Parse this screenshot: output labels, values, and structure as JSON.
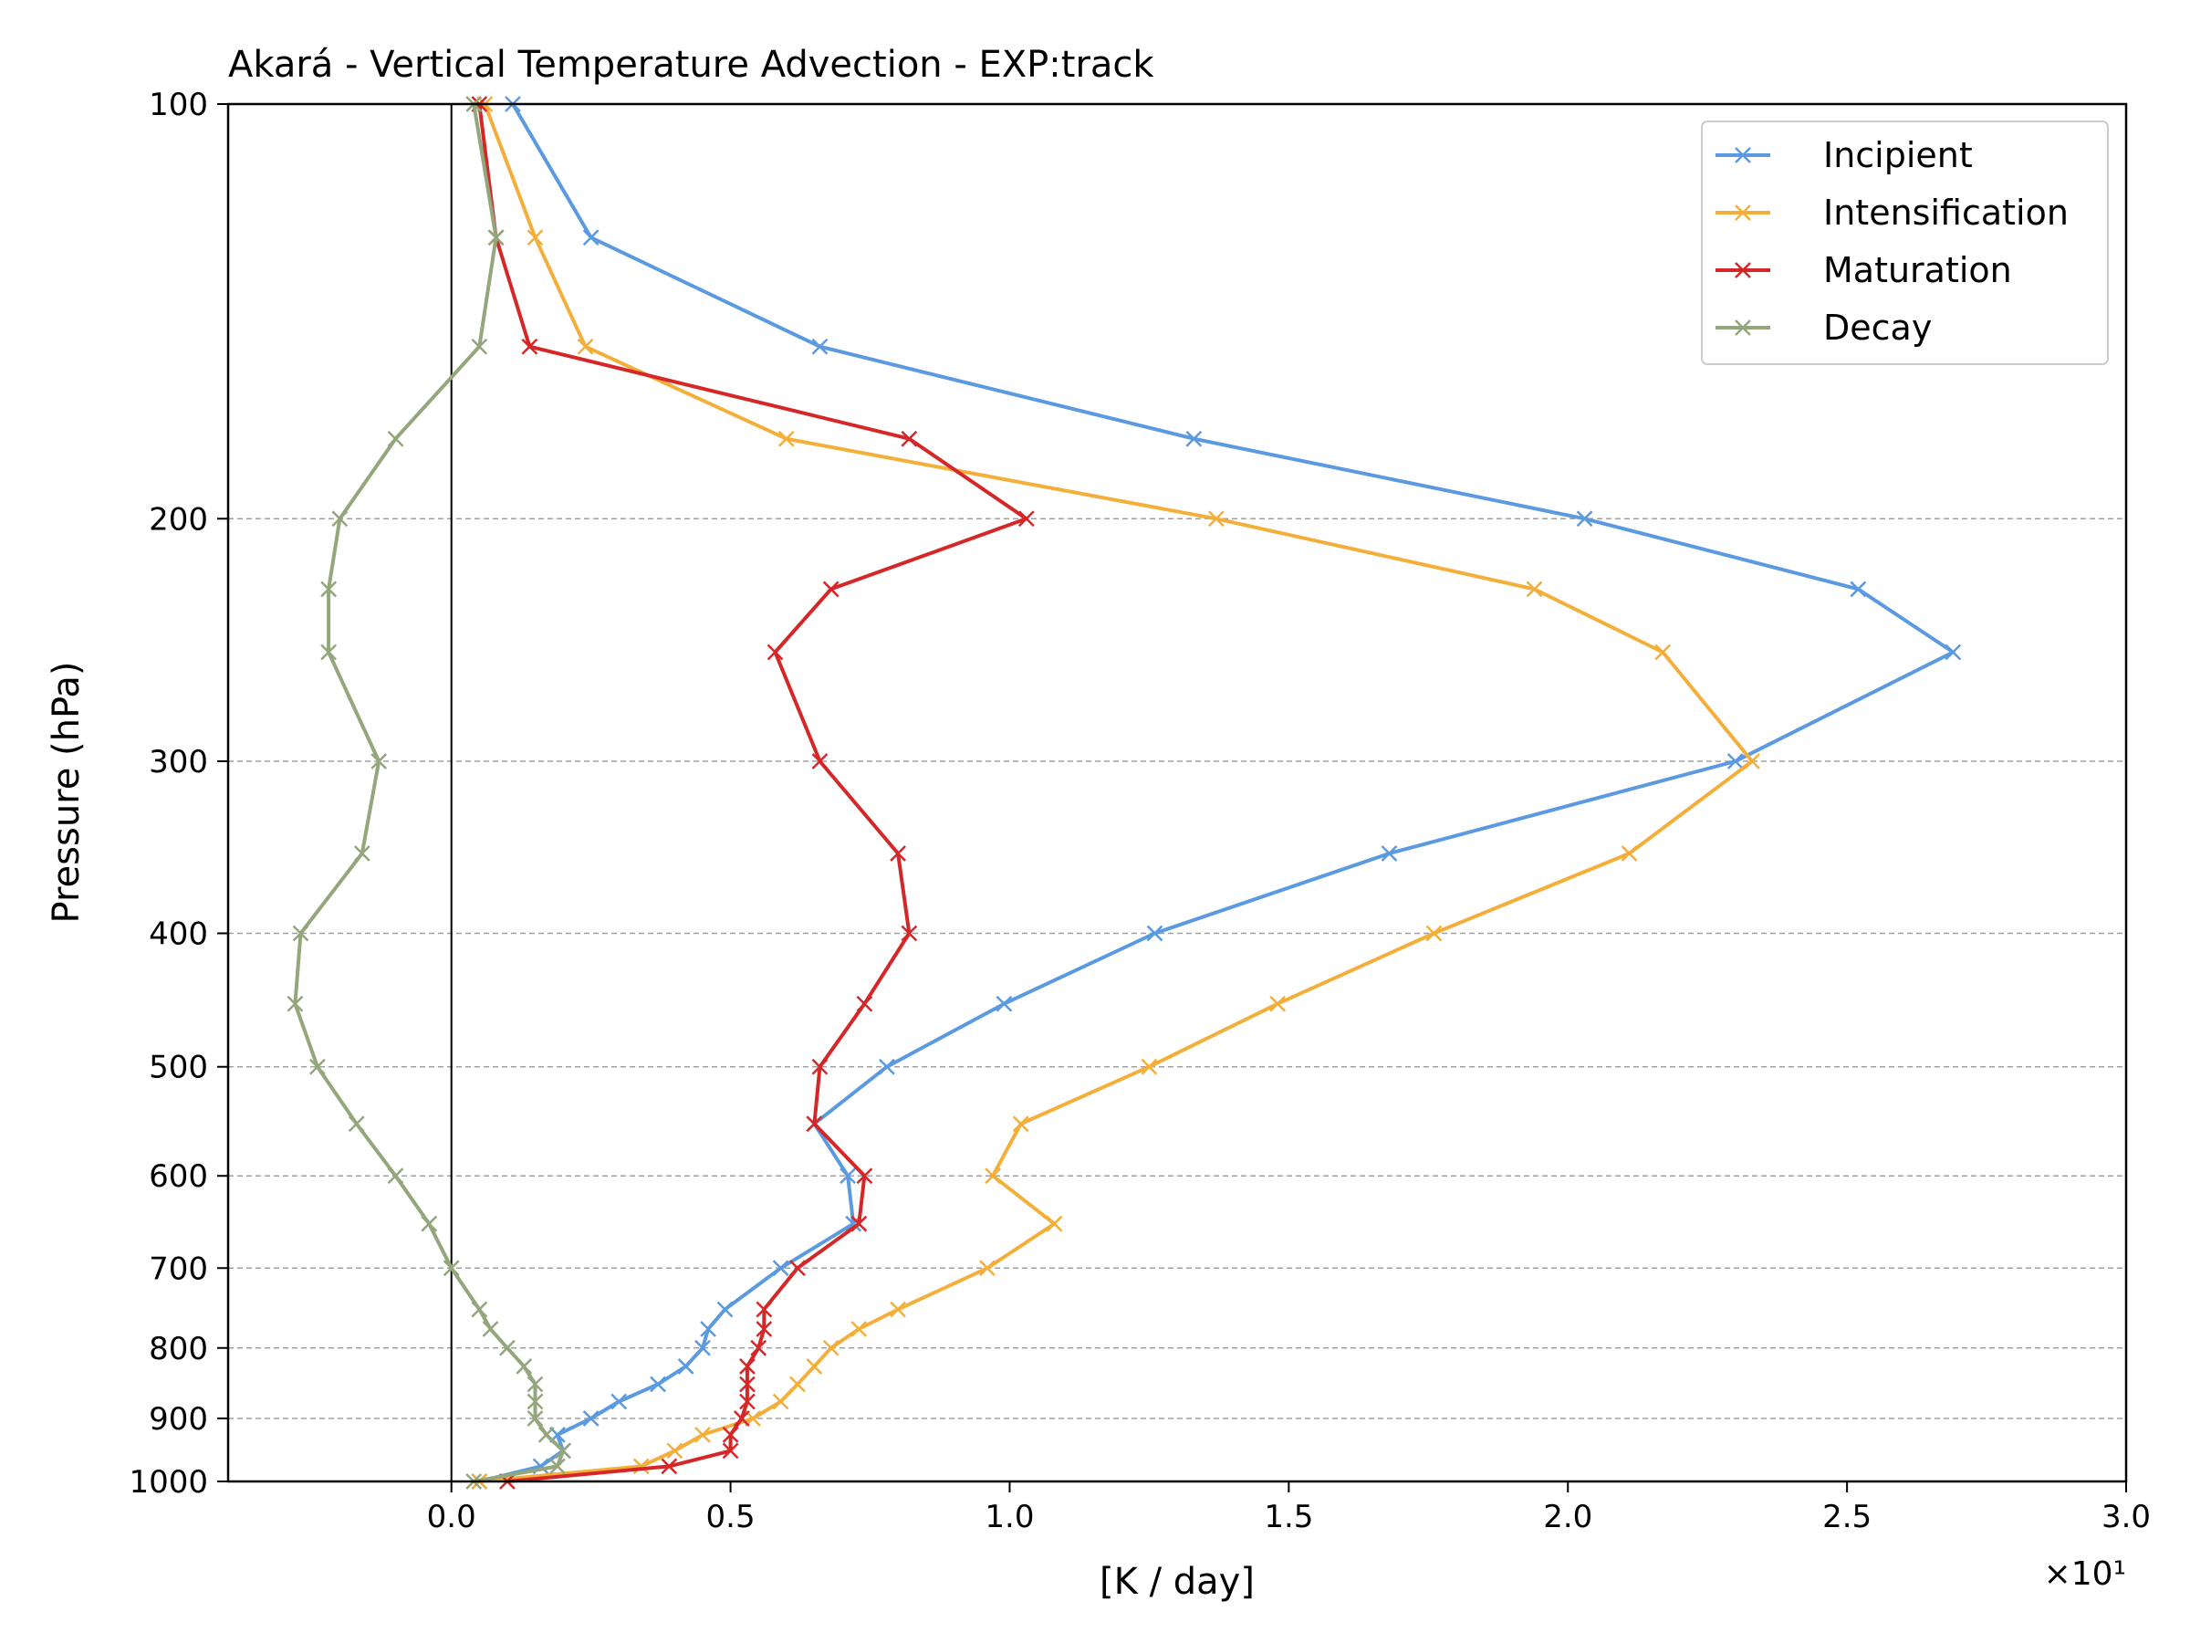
{
  "chart_data": {
    "type": "line",
    "title": "Akará - Vertical Temperature Advection - EXP:track",
    "xlabel": "[K / day]",
    "ylabel": "Pressure (hPa)",
    "x_offset_text": "×10¹",
    "x_scale_note": "x values in units of 10 K/day as printed on axis",
    "xlim": [
      -0.4,
      3.0
    ],
    "ylim": [
      1000,
      100
    ],
    "yscale": "log",
    "xticks": [
      0.0,
      0.5,
      1.0,
      1.5,
      2.0,
      2.5,
      3.0
    ],
    "xtick_labels": [
      "0.0",
      "0.5",
      "1.0",
      "1.5",
      "2.0",
      "2.5",
      "3.0"
    ],
    "yticks": [
      100,
      200,
      300,
      400,
      500,
      600,
      700,
      800,
      900,
      1000
    ],
    "ytick_labels": [
      "100",
      "200",
      "300",
      "400",
      "500",
      "600",
      "700",
      "800",
      "900",
      "1000"
    ],
    "grid": "horizontal dashed at y ticks",
    "zero_line": 0.0,
    "legend_position": "top-right",
    "pressure_levels": [
      1000,
      975,
      950,
      925,
      900,
      875,
      850,
      825,
      800,
      775,
      750,
      700,
      650,
      600,
      550,
      500,
      450,
      400,
      350,
      300,
      250,
      225,
      200,
      175,
      150,
      125,
      100
    ],
    "series": [
      {
        "name": "Incipient",
        "color": "#5b9ae0",
        "values": [
          0.05,
          0.16,
          0.2,
          0.19,
          0.25,
          0.3,
          0.37,
          0.42,
          0.45,
          0.46,
          0.49,
          0.59,
          0.72,
          0.71,
          0.65,
          0.78,
          0.99,
          1.26,
          1.68,
          2.3,
          2.69,
          2.52,
          2.03,
          1.33,
          0.66,
          0.25,
          0.11
        ]
      },
      {
        "name": "Intensification",
        "color": "#f4af3a",
        "values": [
          0.05,
          0.34,
          0.4,
          0.45,
          0.54,
          0.59,
          0.62,
          0.65,
          0.68,
          0.73,
          0.8,
          0.96,
          1.08,
          0.97,
          1.02,
          1.25,
          1.48,
          1.76,
          2.11,
          2.33,
          2.17,
          1.94,
          1.37,
          0.6,
          0.24,
          0.15,
          0.06
        ]
      },
      {
        "name": "Maturation",
        "color": "#d62728",
        "values": [
          0.1,
          0.39,
          0.5,
          0.5,
          0.52,
          0.53,
          0.53,
          0.53,
          0.55,
          0.56,
          0.56,
          0.62,
          0.73,
          0.74,
          0.65,
          0.66,
          0.74,
          0.82,
          0.8,
          0.66,
          0.58,
          0.68,
          1.03,
          0.82,
          0.14,
          0.08,
          0.05
        ]
      },
      {
        "name": "Decay",
        "color": "#93a67c",
        "values": [
          0.04,
          0.19,
          0.2,
          0.17,
          0.15,
          0.15,
          0.15,
          0.13,
          0.1,
          0.07,
          0.05,
          0.0,
          -0.04,
          -0.1,
          -0.17,
          -0.24,
          -0.28,
          -0.27,
          -0.16,
          -0.13,
          -0.22,
          -0.22,
          -0.2,
          -0.1,
          0.05,
          0.08,
          0.04
        ]
      }
    ]
  }
}
